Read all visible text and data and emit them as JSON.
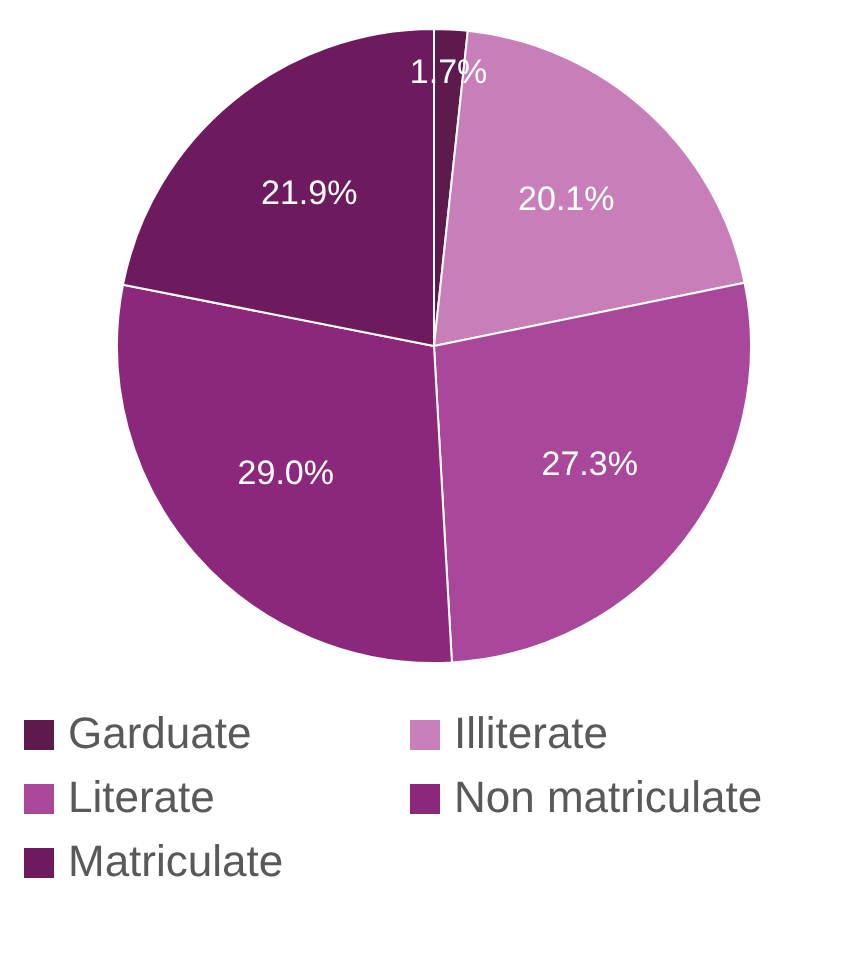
{
  "chart_data": {
    "type": "pie",
    "categories": [
      "Garduate",
      "Illiterate",
      "Literate",
      "Non matriculate",
      "Matriculate"
    ],
    "values": [
      1.7,
      20.1,
      27.3,
      29.0,
      21.9
    ],
    "colors": [
      "#5e1a4c",
      "#c87fb9",
      "#a9479b",
      "#8b287b",
      "#6d1a5f"
    ],
    "value_labels": [
      "1.7%",
      "20.1%",
      "27.3%",
      "29.0%",
      "21.9%"
    ],
    "legend": "bottom"
  }
}
